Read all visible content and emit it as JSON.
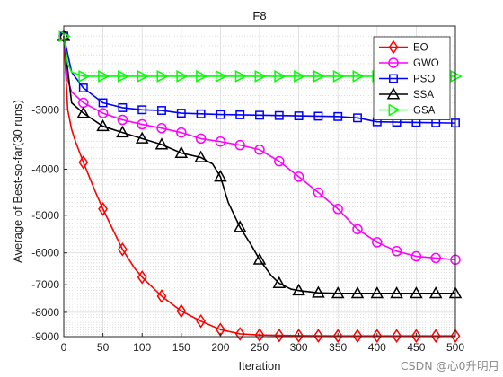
{
  "watermark": "CSDN @心0升明月",
  "chart_data": {
    "type": "line",
    "title": "F8",
    "xlabel": "Iteration",
    "ylabel": "Average of Best-so-far(30 runs)",
    "xlim": [
      0,
      500
    ],
    "ylim": [
      -9000,
      -2000
    ],
    "y_scale": "symlog",
    "xticks": [
      0,
      50,
      100,
      150,
      200,
      250,
      300,
      350,
      400,
      450,
      500
    ],
    "yticks": [
      -9000,
      -8000,
      -7000,
      -6000,
      -5000,
      -4000,
      -3000
    ],
    "grid": true,
    "legend_position": "top-right",
    "marker_x": [
      0,
      25,
      50,
      75,
      100,
      125,
      150,
      175,
      200,
      225,
      250,
      275,
      300,
      325,
      350,
      375,
      400,
      425,
      450,
      475,
      500
    ],
    "series": [
      {
        "name": "EO",
        "color": "#ff0000",
        "marker": "diamond",
        "x": [
          0,
          5,
          10,
          15,
          25,
          40,
          50,
          60,
          75,
          90,
          100,
          125,
          150,
          175,
          200,
          225,
          250,
          275,
          300,
          350,
          400,
          450,
          500
        ],
        "y": [
          -2100,
          -3000,
          -3300,
          -3500,
          -3870,
          -4450,
          -4850,
          -5250,
          -5900,
          -6450,
          -6750,
          -7400,
          -7950,
          -8350,
          -8700,
          -8880,
          -8930,
          -8950,
          -8960,
          -8970,
          -8970,
          -8970,
          -8970
        ]
      },
      {
        "name": "GWO",
        "color": "#ff00ff",
        "marker": "circle",
        "x": [
          0,
          5,
          10,
          25,
          50,
          75,
          100,
          125,
          150,
          175,
          200,
          225,
          250,
          275,
          300,
          325,
          350,
          375,
          400,
          425,
          450,
          475,
          500
        ],
        "y": [
          -2100,
          -2600,
          -2750,
          -2900,
          -3050,
          -3150,
          -3220,
          -3280,
          -3350,
          -3450,
          -3500,
          -3560,
          -3640,
          -3850,
          -4150,
          -4480,
          -4850,
          -5350,
          -5700,
          -5950,
          -6100,
          -6150,
          -6200
        ]
      },
      {
        "name": "PSO",
        "color": "#0000ff",
        "marker": "square",
        "x": [
          0,
          10,
          25,
          50,
          75,
          100,
          125,
          150,
          175,
          200,
          250,
          300,
          350,
          375,
          400,
          450,
          500
        ],
        "y": [
          -2100,
          -2500,
          -2700,
          -2900,
          -2970,
          -3000,
          -3010,
          -3050,
          -3060,
          -3070,
          -3080,
          -3090,
          -3100,
          -3120,
          -3180,
          -3190,
          -3200
        ]
      },
      {
        "name": "SSA",
        "color": "#000000",
        "marker": "triangle-up",
        "x": [
          0,
          10,
          25,
          50,
          75,
          100,
          125,
          150,
          175,
          190,
          200,
          210,
          225,
          240,
          250,
          265,
          275,
          290,
          300,
          325,
          350,
          400,
          450,
          500
        ],
        "y": [
          -2100,
          -2900,
          -3050,
          -3250,
          -3350,
          -3450,
          -3550,
          -3700,
          -3780,
          -3900,
          -4150,
          -4700,
          -5300,
          -5800,
          -6200,
          -6700,
          -6950,
          -7150,
          -7200,
          -7280,
          -7300,
          -7300,
          -7300,
          -7300
        ]
      },
      {
        "name": "GSA",
        "color": "#00ff00",
        "marker": "triangle-right",
        "x": [
          0,
          5,
          10,
          25,
          50,
          500
        ],
        "y": [
          -2100,
          -2400,
          -2500,
          -2550,
          -2550,
          -2550
        ]
      }
    ]
  }
}
